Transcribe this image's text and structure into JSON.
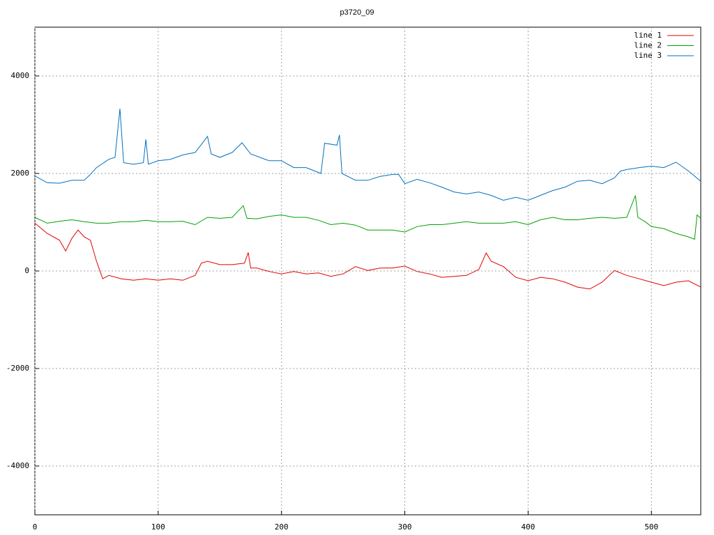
{
  "chart_data": {
    "type": "line",
    "title": "p3720_09",
    "xlim": [
      0,
      540
    ],
    "xticks": [
      0,
      100,
      200,
      300,
      400,
      500
    ],
    "ylim": [
      -5000,
      5000
    ],
    "yticks": [
      -4000,
      -2000,
      0,
      2000,
      4000
    ],
    "grid": true,
    "legend": "top-right",
    "series": [
      {
        "name": "line 1",
        "color": "#e00000",
        "x": [
          0,
          10,
          20,
          25,
          30,
          35,
          40,
          45,
          50,
          55,
          60,
          70,
          80,
          90,
          100,
          110,
          120,
          130,
          135,
          140,
          150,
          160,
          170,
          173,
          175,
          180,
          190,
          200,
          210,
          220,
          230,
          240,
          250,
          260,
          270,
          280,
          290,
          300,
          310,
          320,
          330,
          340,
          350,
          360,
          366,
          370,
          380,
          390,
          400,
          410,
          420,
          430,
          440,
          450,
          460,
          470,
          480,
          490,
          500,
          510,
          520,
          530,
          540
        ],
        "values": [
          980,
          770,
          630,
          410,
          670,
          840,
          700,
          630,
          200,
          -160,
          -90,
          -160,
          -190,
          -160,
          -190,
          -160,
          -190,
          -90,
          160,
          200,
          130,
          130,
          160,
          380,
          60,
          60,
          -10,
          -60,
          -10,
          -60,
          -40,
          -110,
          -60,
          90,
          10,
          60,
          60,
          100,
          -10,
          -60,
          -130,
          -110,
          -90,
          30,
          370,
          200,
          90,
          -130,
          -200,
          -130,
          -160,
          -230,
          -330,
          -370,
          -230,
          10,
          -90,
          -160,
          -230,
          -300,
          -230,
          -200,
          -330
        ]
      },
      {
        "name": "line 2",
        "color": "#00a000",
        "x": [
          0,
          10,
          20,
          30,
          40,
          50,
          60,
          70,
          80,
          90,
          100,
          110,
          120,
          130,
          140,
          150,
          160,
          169,
          172,
          180,
          190,
          200,
          210,
          220,
          230,
          240,
          250,
          260,
          270,
          280,
          290,
          300,
          310,
          320,
          330,
          340,
          350,
          360,
          370,
          380,
          390,
          400,
          410,
          420,
          430,
          440,
          450,
          460,
          470,
          480,
          487,
          489,
          495,
          500,
          510,
          520,
          530,
          535,
          537,
          540
        ],
        "values": [
          1100,
          980,
          1020,
          1050,
          1010,
          980,
          980,
          1010,
          1010,
          1040,
          1010,
          1010,
          1020,
          950,
          1100,
          1080,
          1100,
          1340,
          1080,
          1070,
          1120,
          1150,
          1100,
          1100,
          1040,
          950,
          980,
          940,
          840,
          840,
          840,
          800,
          910,
          950,
          950,
          980,
          1010,
          980,
          980,
          980,
          1010,
          950,
          1050,
          1100,
          1050,
          1050,
          1080,
          1100,
          1080,
          1100,
          1550,
          1100,
          1010,
          910,
          870,
          770,
          700,
          650,
          1150,
          1080
        ]
      },
      {
        "name": "line 3",
        "color": "#0070c0",
        "x": [
          0,
          10,
          20,
          30,
          40,
          45,
          50,
          60,
          65,
          69,
          72,
          80,
          88,
          90,
          92,
          100,
          110,
          120,
          130,
          140,
          143,
          150,
          160,
          168,
          175,
          190,
          200,
          210,
          220,
          232,
          235,
          245,
          247,
          249,
          260,
          270,
          280,
          290,
          295,
          300,
          310,
          320,
          330,
          340,
          350,
          360,
          370,
          380,
          390,
          400,
          410,
          420,
          430,
          440,
          450,
          460,
          470,
          475,
          480,
          490,
          500,
          510,
          520,
          530,
          540
        ],
        "values": [
          1950,
          1810,
          1800,
          1860,
          1860,
          1980,
          2120,
          2290,
          2330,
          3330,
          2220,
          2190,
          2220,
          2700,
          2190,
          2260,
          2290,
          2380,
          2430,
          2760,
          2400,
          2330,
          2430,
          2630,
          2400,
          2260,
          2260,
          2120,
          2120,
          2000,
          2620,
          2580,
          2790,
          2000,
          1860,
          1860,
          1940,
          1980,
          1980,
          1790,
          1880,
          1810,
          1720,
          1620,
          1580,
          1620,
          1550,
          1450,
          1510,
          1450,
          1550,
          1650,
          1720,
          1840,
          1860,
          1790,
          1910,
          2050,
          2080,
          2120,
          2150,
          2120,
          2230,
          2050,
          1840
        ]
      }
    ]
  }
}
